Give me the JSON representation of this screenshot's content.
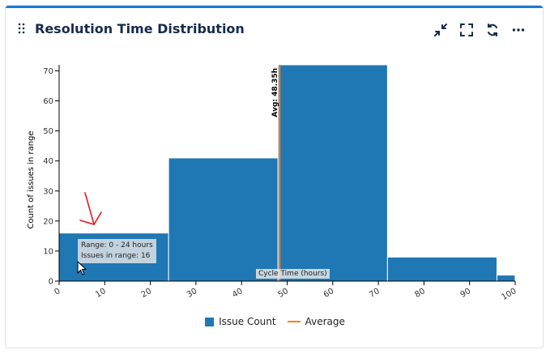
{
  "header": {
    "title": "Resolution Time Distribution",
    "icons": [
      "drag-handle-icon",
      "collapse-icon",
      "fullscreen-icon",
      "refresh-icon",
      "more-options-icon"
    ]
  },
  "colors": {
    "bar": "#1f77b4",
    "average": "#ff7f0e",
    "annotation": "#e8191a"
  },
  "chart_data": {
    "type": "bar",
    "xlabel": "Cycle Time (hours)",
    "ylabel": "Count of issues in range",
    "xlim": [
      0,
      100
    ],
    "ylim": [
      0,
      72
    ],
    "xticks": [
      0,
      10,
      20,
      30,
      40,
      50,
      60,
      70,
      80,
      90,
      100
    ],
    "yticks": [
      0,
      10,
      20,
      30,
      40,
      50,
      60,
      70
    ],
    "bins": [
      {
        "x0": 0,
        "x1": 24,
        "count": 16
      },
      {
        "x0": 24,
        "x1": 48,
        "count": 41
      },
      {
        "x0": 48,
        "x1": 72,
        "count": 72
      },
      {
        "x0": 72,
        "x1": 96,
        "count": 8
      },
      {
        "x0": 96,
        "x1": 100,
        "count": 2
      }
    ],
    "average": {
      "value": 48.35,
      "label": "Avg: 48.35h"
    },
    "legend": {
      "position": "bottom",
      "items": [
        "Issue Count",
        "Average"
      ]
    }
  },
  "tooltip": {
    "range": "Range: 0 - 24 hours",
    "issues": "Issues in range: 16"
  }
}
